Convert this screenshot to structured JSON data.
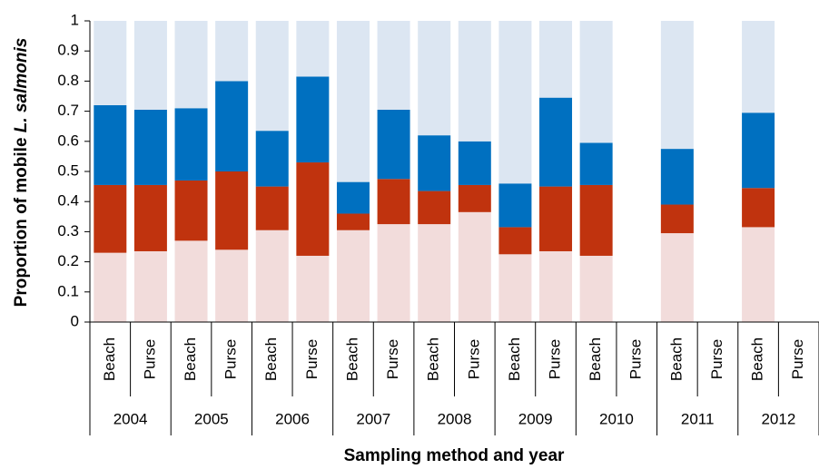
{
  "chart_data": {
    "type": "stacked_bar",
    "ylabel": "Proportion of mobile ",
    "ylabel_italic": "L. salmonis",
    "xlabel": "Sampling method and year",
    "categories": [
      "Beach",
      "Purse",
      "Beach",
      "Purse",
      "Beach",
      "Purse",
      "Beach",
      "Purse",
      "Beach",
      "Purse",
      "Beach",
      "Purse",
      "Beach",
      "Purse",
      "Beach",
      "Purse",
      "Beach",
      "Purse"
    ],
    "groups": [
      "2004",
      "2005",
      "2006",
      "2007",
      "2008",
      "2009",
      "2010",
      "2011",
      "2012"
    ],
    "series": [
      {
        "color": "#f2dcdb",
        "values": [
          0.23,
          0.235,
          0.27,
          0.24,
          0.305,
          0.22,
          0.305,
          0.325,
          0.325,
          0.365,
          0.225,
          0.235,
          0.22,
          null,
          0.295,
          null,
          0.315,
          null
        ]
      },
      {
        "color": "#c0330e",
        "values": [
          0.225,
          0.22,
          0.2,
          0.26,
          0.145,
          0.31,
          0.055,
          0.15,
          0.11,
          0.09,
          0.09,
          0.215,
          0.235,
          null,
          0.095,
          null,
          0.13,
          null
        ]
      },
      {
        "color": "#0070c0",
        "values": [
          0.265,
          0.25,
          0.24,
          0.3,
          0.185,
          0.285,
          0.105,
          0.23,
          0.185,
          0.145,
          0.145,
          0.295,
          0.14,
          null,
          0.185,
          null,
          0.25,
          null
        ]
      },
      {
        "color": "#dce6f2",
        "values": [
          0.28,
          0.295,
          0.29,
          0.2,
          0.365,
          0.185,
          0.535,
          0.295,
          0.38,
          0.4,
          0.54,
          0.255,
          0.405,
          null,
          0.425,
          null,
          0.305,
          null
        ]
      }
    ],
    "ylim": [
      0,
      1
    ],
    "yticks": [
      0,
      0.1,
      0.2,
      0.3,
      0.4,
      0.5,
      0.6,
      0.7,
      0.8,
      0.9,
      1
    ]
  }
}
